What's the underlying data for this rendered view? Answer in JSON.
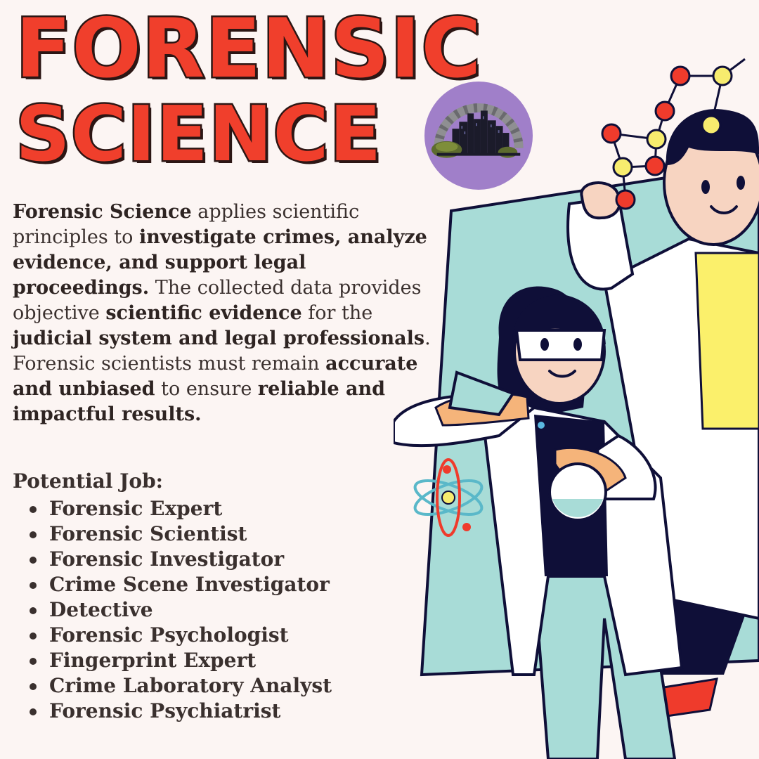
{
  "title": {
    "line1": "FORENSIC",
    "line2": "SCIENCE"
  },
  "description": [
    {
      "text": "Forensic Science",
      "bold": true
    },
    {
      "text": " applies scientific principles to ",
      "bold": false
    },
    {
      "text": "investigate crimes, analyze evidence, and support legal proceedings.",
      "bold": true
    },
    {
      "text": " The collected data provides objective ",
      "bold": false
    },
    {
      "text": "scientific evidence",
      "bold": true
    },
    {
      "text": " for the ",
      "bold": false
    },
    {
      "text": "judicial system and legal professionals",
      "bold": true
    },
    {
      "text": ". Forensic scientists must remain ",
      "bold": false
    },
    {
      "text": "accurate and unbiased",
      "bold": true
    },
    {
      "text": " to ensure ",
      "bold": false
    },
    {
      "text": "reliable and impactful results.",
      "bold": true
    }
  ],
  "jobs": {
    "heading": "Potential Job:",
    "items": [
      "Forensic Expert",
      "Forensic Scientist",
      "Forensic Investigator",
      "Crime Scene Investigator",
      "Detective",
      "Forensic Psychologist",
      "Fingerprint Expert",
      "Crime Laboratory Analyst",
      "Forensic Psychiatrist"
    ]
  },
  "logo": {
    "icon": "city-skyline-logo-icon"
  },
  "illustration": {
    "icon": "scientists-illustration"
  },
  "colors": {
    "title": "#f03f2c",
    "title_outline": "#2c1614",
    "text": "#3a302e",
    "background": "#fcf5f3",
    "logo_circle": "#a07fc9",
    "panel": "#a8dcd7",
    "shirt_yellow": "#fbf06b",
    "skin": "#f7d4c1",
    "navy": "#0f0f38",
    "molecule_red": "#ef3b2c",
    "molecule_yellow": "#f7ec6e"
  }
}
